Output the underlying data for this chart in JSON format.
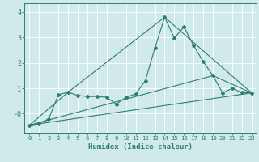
{
  "title": "",
  "xlabel": "Humidex (Indice chaleur)",
  "xlim": [
    -0.5,
    23.5
  ],
  "ylim": [
    -0.75,
    4.35
  ],
  "yticks": [
    0,
    1,
    2,
    3,
    4
  ],
  "ytick_labels": [
    "-0",
    "1",
    "2",
    "3",
    "4"
  ],
  "xticks": [
    0,
    1,
    2,
    3,
    4,
    5,
    6,
    7,
    8,
    9,
    10,
    11,
    12,
    13,
    14,
    15,
    16,
    17,
    18,
    19,
    20,
    21,
    22,
    23
  ],
  "bg_color": "#d0eaea",
  "grid_color": "#ffffff",
  "line_color": "#2e7d72",
  "lines": [
    {
      "x": [
        0,
        1,
        2,
        3,
        4,
        5,
        6,
        7,
        8,
        9,
        10,
        11,
        12,
        13,
        14,
        15,
        16,
        17,
        18,
        19,
        20,
        21,
        22,
        23
      ],
      "y": [
        -0.45,
        -0.38,
        -0.2,
        0.75,
        0.85,
        0.72,
        0.68,
        0.68,
        0.65,
        0.38,
        0.65,
        0.78,
        1.3,
        2.6,
        3.8,
        2.98,
        3.42,
        2.68,
        2.05,
        1.5,
        0.82,
        1.0,
        0.83,
        0.82
      ],
      "marker": true
    },
    {
      "x": [
        0,
        23
      ],
      "y": [
        -0.45,
        0.82
      ],
      "marker": false
    },
    {
      "x": [
        0,
        19,
        23
      ],
      "y": [
        -0.45,
        1.5,
        0.82
      ],
      "marker": false
    },
    {
      "x": [
        0,
        4,
        14,
        23
      ],
      "y": [
        -0.45,
        0.85,
        3.8,
        0.82
      ],
      "marker": false
    }
  ]
}
